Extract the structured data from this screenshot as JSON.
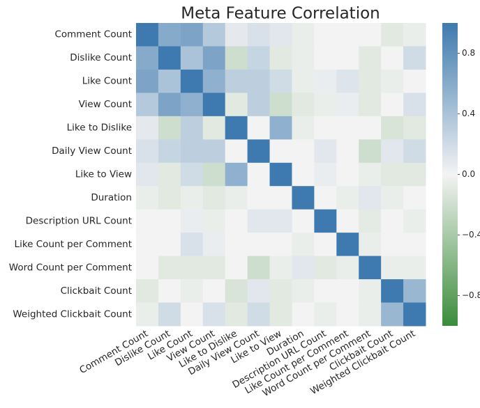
{
  "chart_data": {
    "type": "heatmap",
    "title": "Meta Feature Correlation",
    "categories": [
      "Comment Count",
      "Dislike Count",
      "Like Count",
      "View Count",
      "Like to Dislike",
      "Daily View Count",
      "Like to View",
      "Duration",
      "Description URL Count",
      "Like Count per Comment",
      "Word Count per Comment",
      "Clickbait Count",
      "Weighted Clickbait Count"
    ],
    "values": [
      [
        1,
        0.6,
        0.65,
        0.35,
        0.08,
        0.15,
        0.1,
        -0.05,
        0,
        0,
        0,
        -0.1,
        -0.05
      ],
      [
        0.6,
        1,
        0.4,
        0.65,
        -0.2,
        0.25,
        -0.1,
        -0.05,
        0,
        0,
        -0.1,
        0,
        0.2
      ],
      [
        0.65,
        0.4,
        1,
        0.55,
        0.3,
        0.3,
        0.2,
        -0.05,
        0.05,
        0.12,
        -0.1,
        -0.05,
        0
      ],
      [
        0.35,
        0.65,
        0.55,
        1,
        -0.1,
        0.3,
        -0.2,
        -0.1,
        -0.05,
        0.05,
        -0.1,
        0,
        0.15
      ],
      [
        0.08,
        -0.2,
        0.3,
        -0.1,
        1,
        0,
        0.55,
        -0.05,
        0,
        0,
        0,
        -0.15,
        -0.1
      ],
      [
        0.15,
        0.25,
        0.3,
        0.3,
        0,
        1,
        0,
        0,
        0.1,
        0,
        -0.2,
        0.1,
        0.2
      ],
      [
        0.1,
        -0.1,
        0.2,
        -0.2,
        0.55,
        0,
        1,
        0,
        0.05,
        0,
        -0.05,
        -0.1,
        -0.1
      ],
      [
        -0.05,
        -0.1,
        -0.05,
        -0.1,
        -0.05,
        0,
        0,
        1,
        0,
        -0.05,
        0.1,
        -0.05,
        0
      ],
      [
        0,
        0,
        0.05,
        -0.05,
        0,
        0.1,
        0.1,
        0,
        1,
        0,
        -0.08,
        0,
        -0.05
      ],
      [
        0,
        0,
        0.15,
        0.05,
        0,
        0,
        0,
        -0.05,
        0,
        1,
        -0.05,
        0,
        0
      ],
      [
        0,
        -0.1,
        -0.1,
        -0.1,
        0,
        -0.2,
        -0.05,
        0.1,
        -0.1,
        -0.05,
        1,
        -0.05,
        -0.05
      ],
      [
        -0.1,
        0,
        -0.05,
        0,
        -0.15,
        0.1,
        -0.1,
        -0.05,
        0,
        0,
        -0.05,
        1,
        0.5
      ],
      [
        -0.05,
        0.2,
        0,
        0.15,
        -0.1,
        0.2,
        -0.1,
        0,
        -0.05,
        0,
        -0.05,
        0.5,
        1
      ]
    ],
    "zlim": [
      -1,
      1
    ],
    "zticks": [
      0.8,
      0.4,
      {
        "value": 0,
        "label": "0.0"
      },
      {
        "value": -0.4,
        "label": "−0.4"
      },
      {
        "value": -0.8,
        "label": "−0.8"
      }
    ],
    "colormap": {
      "low": "#3b8c3b",
      "mid": "#f3f3f3",
      "high": "#3e7aaf"
    }
  }
}
